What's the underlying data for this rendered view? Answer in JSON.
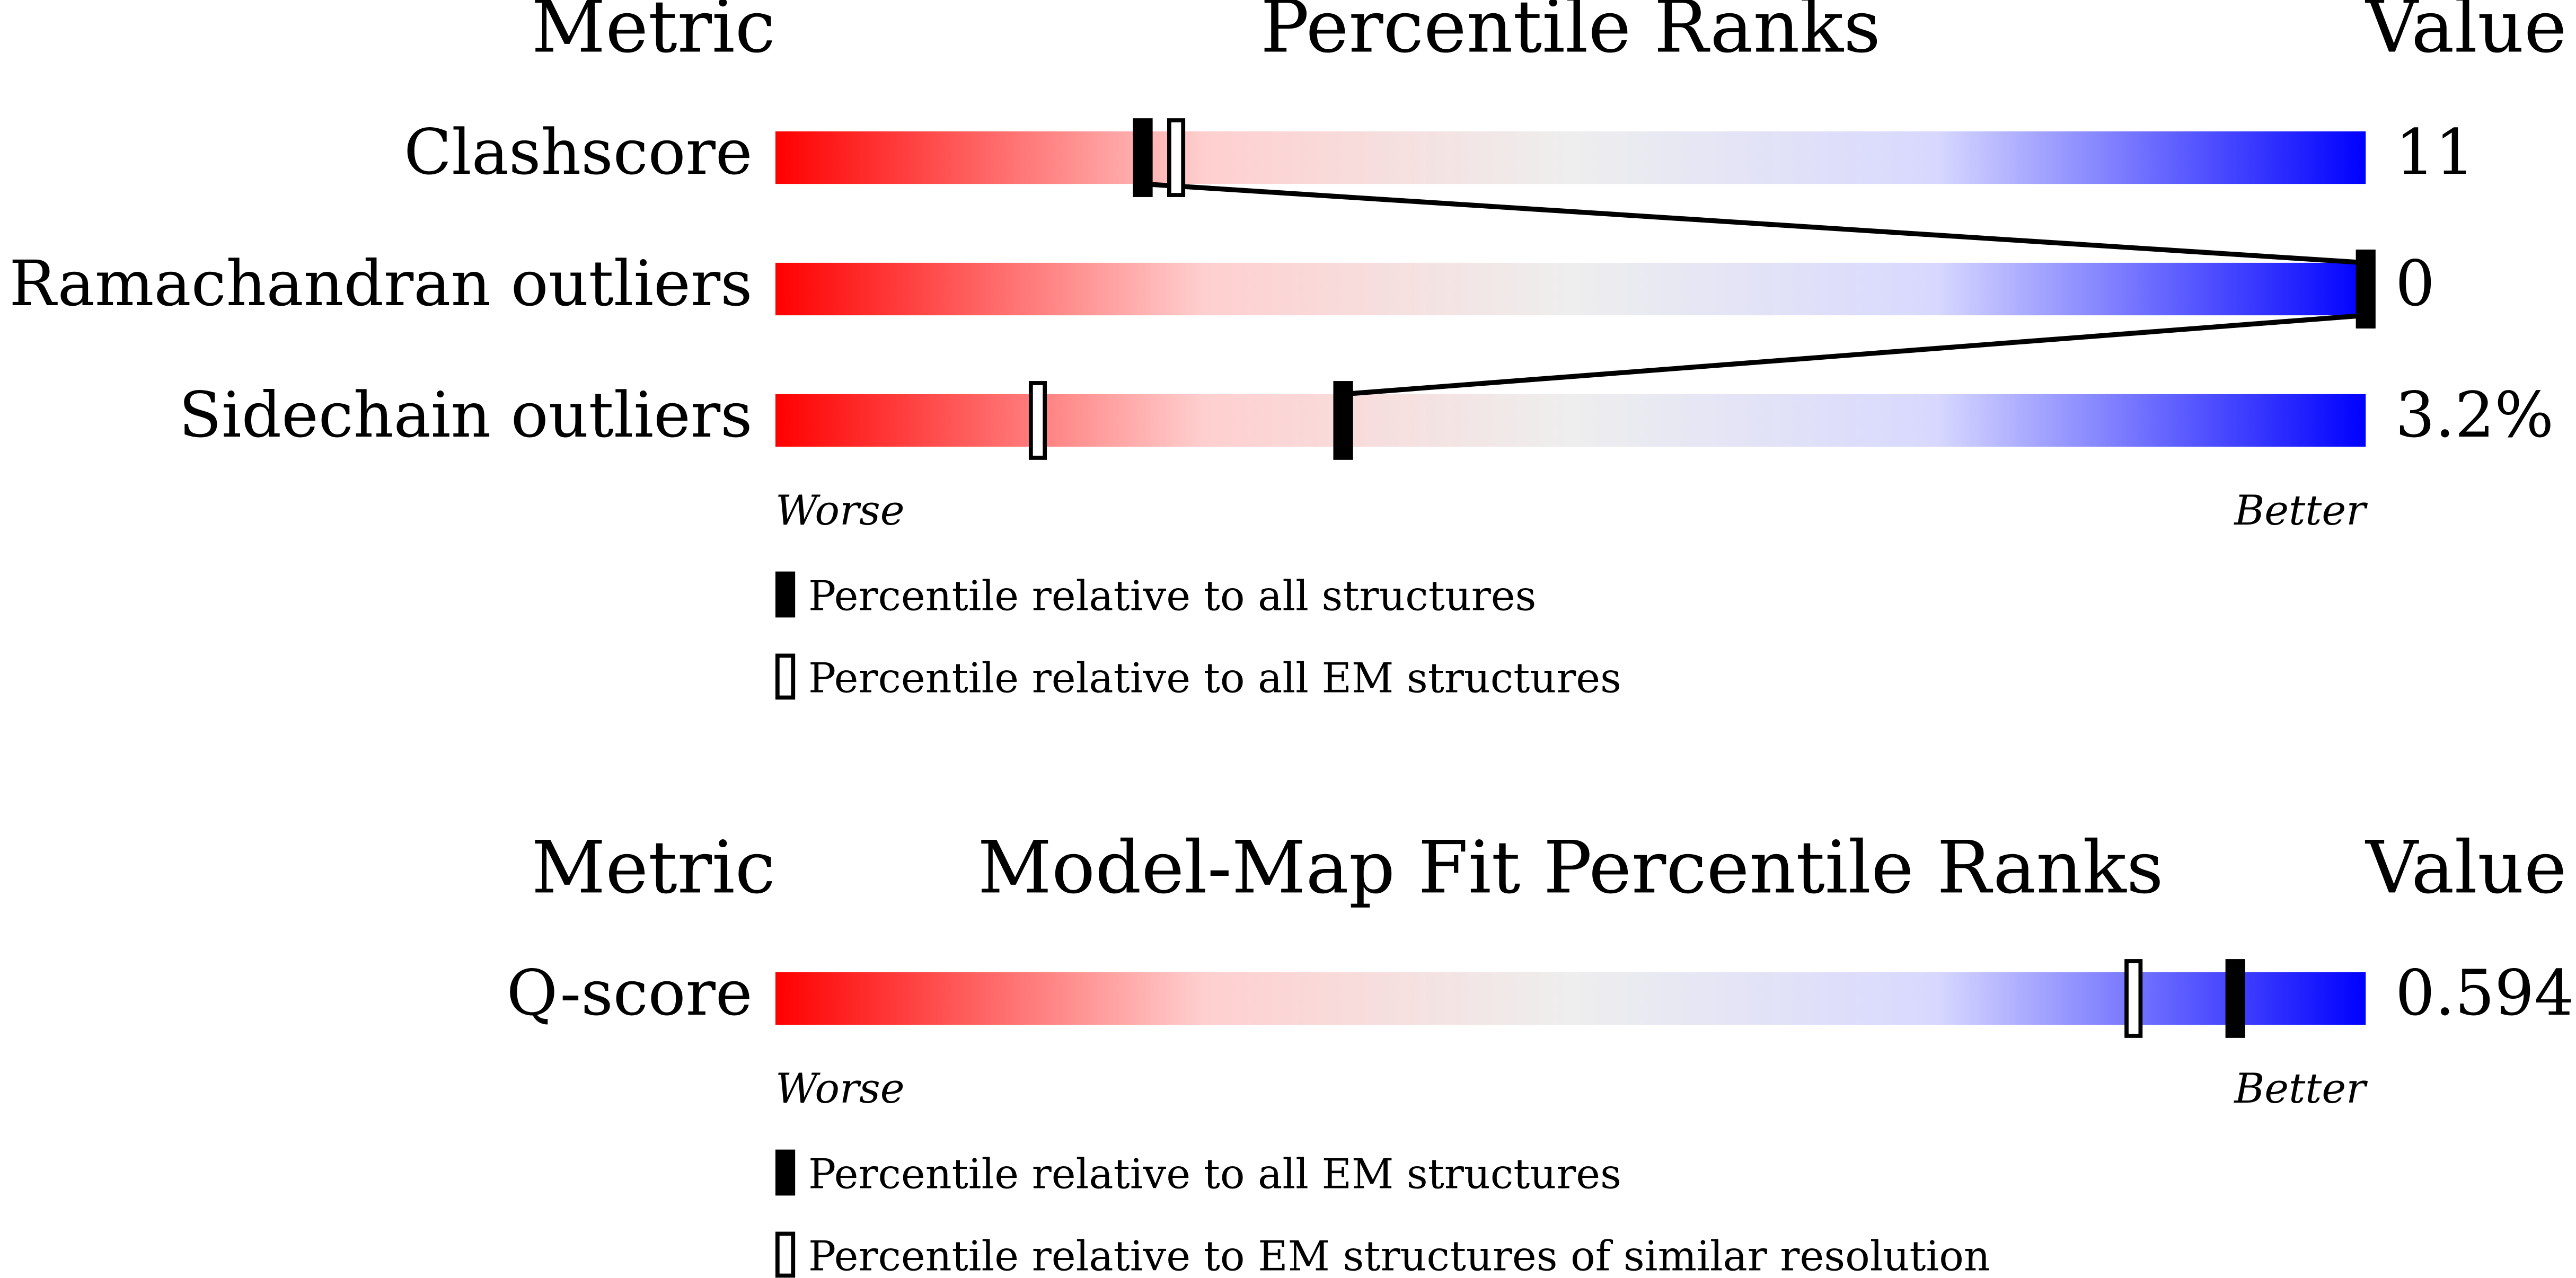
{
  "chart_data": [
    {
      "type": "percentile-slider",
      "metric_header": "Metric",
      "title": "Percentile Ranks",
      "value_header": "Value",
      "xlim": [
        0,
        100
      ],
      "worse_label": "Worse",
      "better_label": "Better",
      "series": [
        {
          "name": "Percentile relative to all structures",
          "style": "filled"
        },
        {
          "name": "Percentile relative to all EM structures",
          "style": "open"
        }
      ],
      "rows": [
        {
          "metric": "Clashscore",
          "value": 11,
          "percentiles": [
            23.1,
            25.2
          ]
        },
        {
          "metric": "Ramachandran outliers",
          "value": 0,
          "percentiles": [
            100,
            100
          ]
        },
        {
          "metric": "Sidechain outliers",
          "value": 3.2,
          "value_label": "3.2%",
          "percentiles": [
            35.7,
            16.5
          ]
        }
      ]
    },
    {
      "type": "percentile-slider",
      "metric_header": "Metric",
      "title": "Model-Map Fit Percentile Ranks",
      "value_header": "Value",
      "xlim": [
        0,
        100
      ],
      "worse_label": "Worse",
      "better_label": "Better",
      "series": [
        {
          "name": "Percentile relative to all EM structures",
          "style": "filled"
        },
        {
          "name": "Percentile relative to EM structures of similar resolution",
          "style": "open"
        }
      ],
      "rows": [
        {
          "metric": "Q-score",
          "value": 0.594,
          "percentiles": [
            91.8,
            85.4
          ]
        }
      ]
    }
  ]
}
